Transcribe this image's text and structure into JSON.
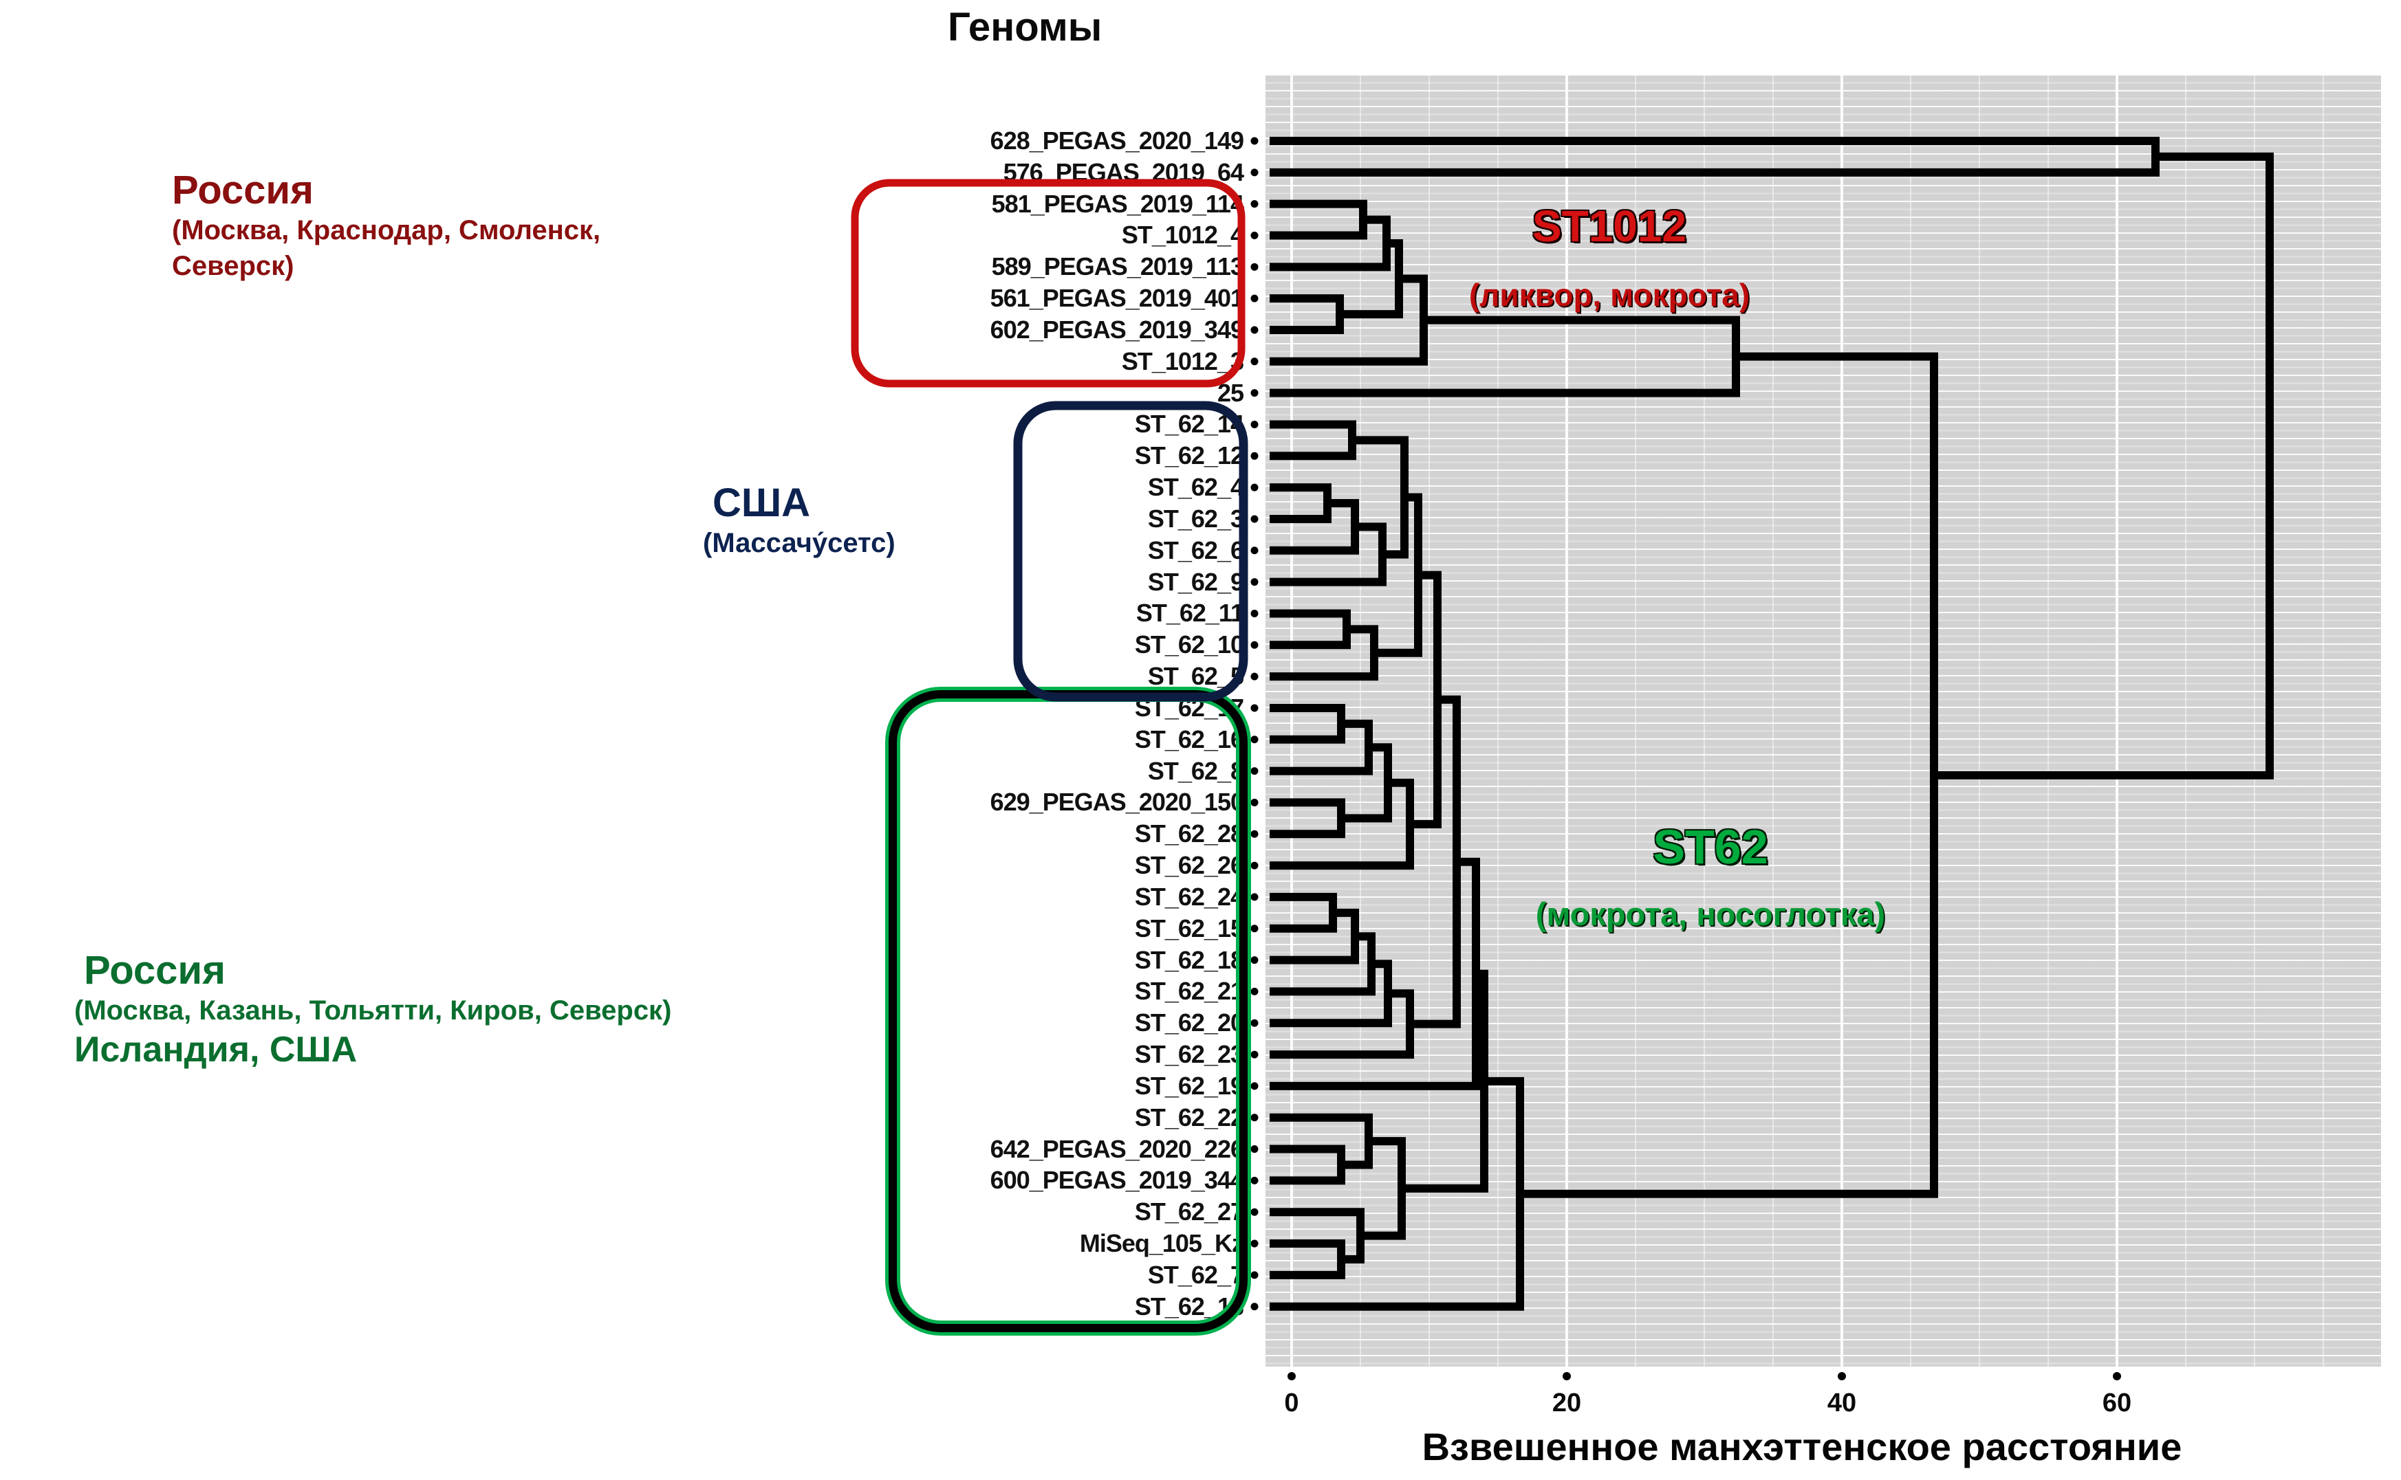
{
  "header": {
    "column_title": "Геномы"
  },
  "axis": {
    "title": "Взвешенное манхэттенское расстояние",
    "ticks": [
      "0",
      "20",
      "40",
      "60"
    ]
  },
  "regions": {
    "russia_red": {
      "title": "Россия",
      "sub_line1": "(Москва, Краснодар, Смоленск,",
      "sub_line2": "Северск)",
      "color": "#8a0f0f"
    },
    "usa_blue": {
      "title": "США",
      "sub_line1": "(Массачу́сетс)",
      "color": "#0c2250"
    },
    "russia_green": {
      "title": "Россия",
      "sub_line1": "(Москва, Казань, Тольятти,  Киров, Северск)",
      "title2": "Исландия, США",
      "color": "#0b6e2f"
    }
  },
  "cluster_labels": {
    "st1012": {
      "title": "ST1012",
      "subtitle": "(ликвор,  мокрота)",
      "color": "#d51212"
    },
    "st62": {
      "title": "ST62",
      "subtitle": "(мокрота, носоглотка)",
      "color": "#00ab3e"
    }
  },
  "group_boxes": {
    "red": {
      "color": "#c90f0f",
      "leaf_range": [
        2,
        7
      ]
    },
    "navy": {
      "color": "#0d1d42",
      "leaf_range": [
        9,
        17
      ]
    },
    "green": {
      "color": "#00b14e",
      "edge": "#000000",
      "leaf_range": [
        18,
        37
      ]
    }
  },
  "chart_data": {
    "type": "dendrogram",
    "orientation": "leaves-left-root-right",
    "xlabel": "Взвешенное манхэттенское расстояние",
    "x_ticks": [
      0,
      20,
      40,
      60
    ],
    "x_range": [
      -1.9,
      79
    ],
    "grid": "on",
    "leaves": [
      "628_PEGAS_2020_149",
      "576_PEGAS_2019_64",
      "581_PEGAS_2019_114",
      "ST_1012_4",
      "589_PEGAS_2019_113",
      "561_PEGAS_2019_401",
      "602_PEGAS_2019_349",
      "ST_1012_3",
      "25",
      "ST_62_14",
      "ST_62_12",
      "ST_62_4",
      "ST_62_3",
      "ST_62_6",
      "ST_62_9",
      "ST_62_11",
      "ST_62_10",
      "ST_62_5",
      "ST_62_17",
      "ST_62_16",
      "ST_62_8",
      "629_PEGAS_2020_150",
      "ST_62_28",
      "ST_62_26",
      "ST_62_24",
      "ST_62_15",
      "ST_62_18",
      "ST_62_21",
      "ST_62_20",
      "ST_62_23",
      "ST_62_19",
      "ST_62_22",
      "642_PEGAS_2020_226",
      "600_PEGAS_2019_344",
      "ST_62_27",
      "MiSeq_105_Kz",
      "ST_62_7",
      "ST_62_13"
    ],
    "merges": [
      [
        "L2",
        "L3",
        5.2
      ],
      [
        "n1",
        "L4",
        6.9
      ],
      [
        "L5",
        "L6",
        3.5
      ],
      [
        "n2",
        "n3",
        7.8
      ],
      [
        "n4",
        "L7",
        9.6
      ],
      [
        "n5",
        "L8",
        32.3
      ],
      [
        "L9",
        "L10",
        4.4
      ],
      [
        "L11",
        "L12",
        2.6
      ],
      [
        "n8",
        "L13",
        4.6
      ],
      [
        "n9",
        "L14",
        6.6
      ],
      [
        "n7",
        "n10",
        8.2
      ],
      [
        "L15",
        "L16",
        4.0
      ],
      [
        "n12",
        "L17",
        6.0
      ],
      [
        "n11",
        "n13",
        9.2
      ],
      [
        "L18",
        "L19",
        3.6
      ],
      [
        "n15",
        "L20",
        5.6
      ],
      [
        "L21",
        "L22",
        3.6
      ],
      [
        "n16",
        "n17",
        7.0
      ],
      [
        "n18",
        "L23",
        8.6
      ],
      [
        "n14",
        "n19",
        10.6
      ],
      [
        "L24",
        "L25",
        3.0
      ],
      [
        "n21",
        "L26",
        4.6
      ],
      [
        "n22",
        "L27",
        5.8
      ],
      [
        "n23",
        "L28",
        7.0
      ],
      [
        "n24",
        "L29",
        8.6
      ],
      [
        "n20",
        "n25",
        12.0
      ],
      [
        "n26",
        "L30",
        13.4
      ],
      [
        "L32",
        "L33",
        3.6
      ],
      [
        "L31",
        "n28",
        5.6
      ],
      [
        "L35",
        "L36",
        3.6
      ],
      [
        "L34",
        "n30",
        5.0
      ],
      [
        "n29",
        "n31",
        8.0
      ],
      [
        "n27",
        "n32",
        14.0
      ],
      [
        "n33",
        "L37",
        16.6
      ],
      [
        "n6",
        "n34",
        46.7
      ],
      [
        "L0",
        "L1",
        62.8
      ],
      [
        "n36",
        "n35",
        71.1
      ]
    ]
  }
}
